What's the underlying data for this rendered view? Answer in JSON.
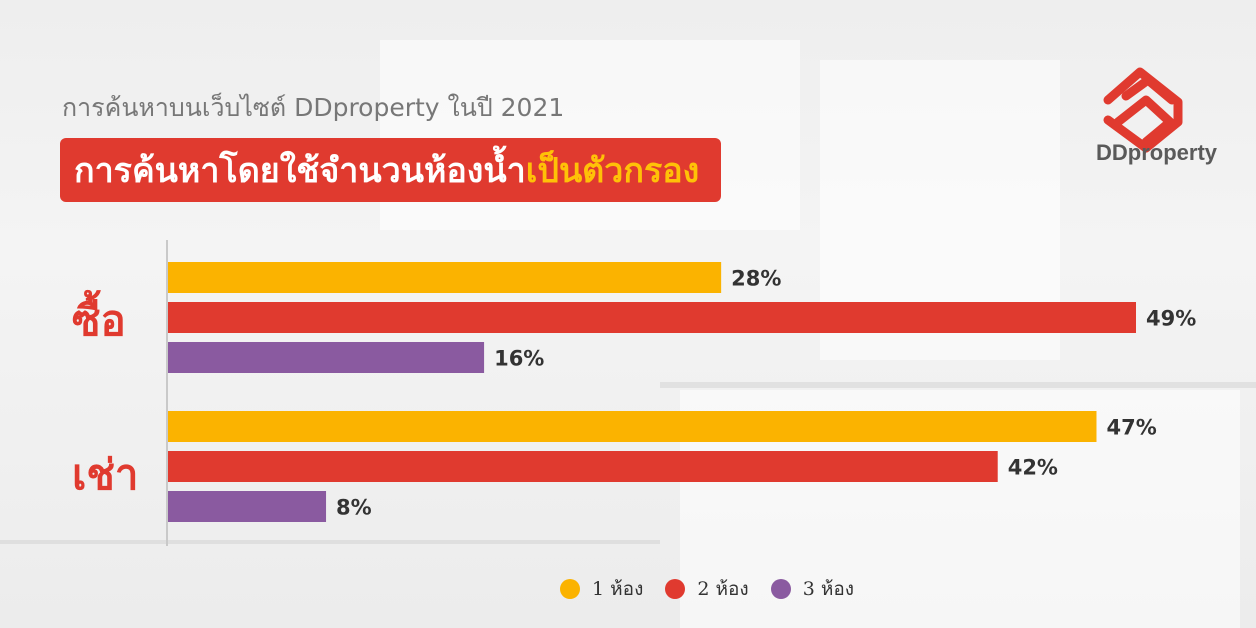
{
  "subtitle": "การค้นหาบนเว็บไซต์ DDproperty ในปี 2021",
  "title": {
    "main": "การค้นหาโดยใช้จำนวนห้องน้ำ",
    "accent": "เป็นตัวกรอง"
  },
  "logo_text": "DDproperty",
  "colors": {
    "accent_red": "#e03a2f",
    "accent_yellow": "#ffc107"
  },
  "chart_data": {
    "type": "bar",
    "orientation": "horizontal",
    "categories": [
      "ซื้อ",
      "เช่า"
    ],
    "series": [
      {
        "name": "1 ห้อง",
        "values": [
          28,
          47
        ],
        "labels": [
          "28%",
          "47%"
        ],
        "color": "#fbb300"
      },
      {
        "name": "2 ห้อง",
        "values": [
          49,
          42
        ],
        "labels": [
          "49%",
          "42%"
        ],
        "color": "#e03a2f"
      },
      {
        "name": "3 ห้อง",
        "values": [
          16,
          8
        ],
        "labels": [
          "16%",
          "8%"
        ],
        "color": "#8a5aa0"
      }
    ],
    "xlim": [
      0,
      49
    ],
    "grid": false,
    "legend_position": "bottom-center"
  }
}
